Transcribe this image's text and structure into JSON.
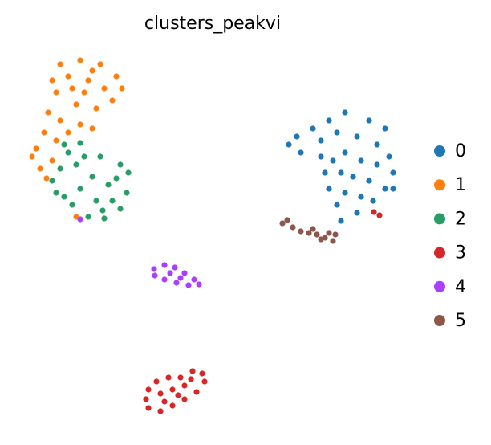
{
  "chart_data": {
    "type": "scatter",
    "title": "clusters_peakvi",
    "xlim": [
      0,
      612
    ],
    "ylim": [
      0,
      554
    ],
    "grid": false,
    "legend": "right",
    "series": [
      {
        "name": "0",
        "color": "#1f77b4",
        "x": [
          430,
          460,
          480,
          410,
          390,
          370,
          360,
          375,
          400,
          420,
          445,
          470,
          485,
          490,
          480,
          465,
          445,
          425,
          420,
          410,
          405,
          400,
          430,
          450,
          440,
          460,
          430,
          450,
          470,
          415,
          425,
          490
        ],
        "values": [
          414,
          404,
          394,
          404,
          394,
          384,
          374,
          364,
          379,
          389,
          384,
          374,
          359,
          339,
          319,
          304,
          289,
          279,
          299,
          319,
          339,
          359,
          364,
          354,
          334,
          329,
          314,
          309,
          349,
          354,
          339,
          319
        ]
      },
      {
        "name": "1",
        "color": "#ff7f0e",
        "x": [
          75,
          100,
          125,
          145,
          152,
          140,
          120,
          95,
          70,
          65,
          85,
          110,
          130,
          105,
          90,
          115,
          60,
          75,
          100,
          115,
          55,
          45,
          40,
          50,
          58,
          70,
          65,
          85,
          95
        ],
        "values": [
          474,
          479,
          474,
          459,
          444,
          429,
          419,
          424,
          439,
          454,
          459,
          454,
          444,
          439,
          444,
          466,
          414,
          404,
          399,
          394,
          389,
          369,
          359,
          344,
          332,
          379,
          354,
          389,
          284
        ]
      },
      {
        "name": "2",
        "color": "#279e68",
        "x": [
          80,
          100,
          125,
          150,
          160,
          158,
          150,
          130,
          110,
          90,
          70,
          65,
          75,
          95,
          115,
          135,
          100,
          120,
          140,
          85,
          105,
          145,
          80,
          128
        ],
        "values": [
          374,
          376,
          359,
          349,
          339,
          314,
          294,
          282,
          284,
          299,
          314,
          329,
          344,
          349,
          334,
          324,
          319,
          304,
          304,
          364,
          359,
          332,
          309,
          292
        ]
      },
      {
        "name": "3",
        "color": "#d62728",
        "x": [
          185,
          195,
          210,
          225,
          240,
          252,
          255,
          245,
          230,
          215,
          200,
          185,
          182,
          200,
          215,
          230,
          205,
          222,
          238,
          466,
          473
        ],
        "values": [
          69,
          79,
          84,
          84,
          92,
          89,
          79,
          66,
          57,
          49,
          42,
          46,
          57,
          64,
          69,
          74,
          54,
          62,
          82,
          290,
          286
        ]
      },
      {
        "name": "4",
        "color": "#aa40fc",
        "x": [
          192,
          205,
          218,
          230,
          242,
          248,
          235,
          220,
          205,
          193,
          212,
          225,
          100
        ],
        "values": [
          219,
          224,
          221,
          214,
          206,
          200,
          199,
          202,
          206,
          211,
          214,
          208,
          281
        ]
      },
      {
        "name": "5",
        "color": "#8c564b",
        "x": [
          352,
          358,
          365,
          375,
          385,
          395,
          405,
          415,
          418,
          410,
          400,
          390
        ],
        "values": [
          276,
          280,
          271,
          266,
          264,
          262,
          258,
          254,
          262,
          264,
          256,
          269
        ]
      }
    ]
  }
}
